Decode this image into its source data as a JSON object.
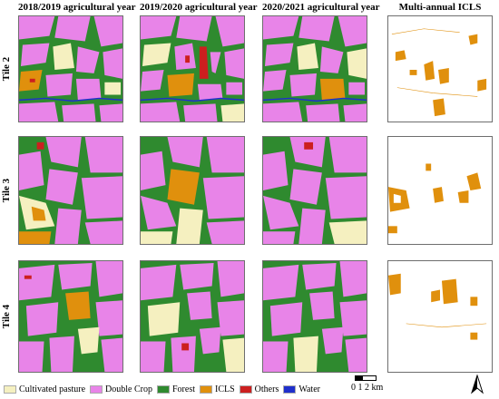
{
  "columns": [
    {
      "title": "2018/2019 agricultural year"
    },
    {
      "title": "2019/2020 agricultural year"
    },
    {
      "title": "2020/2021 agricultural year"
    },
    {
      "title": "Multi-annual ICLS"
    }
  ],
  "rows": [
    {
      "label": "Tile 2"
    },
    {
      "label": "Tile 3"
    },
    {
      "label": "Tile 4"
    }
  ],
  "legend": [
    {
      "label": "Cultivated pasture",
      "color": "#f5f0c0"
    },
    {
      "label": "Double Crop",
      "color": "#e884e8"
    },
    {
      "label": "Forest",
      "color": "#2f8a2f"
    },
    {
      "label": "ICLS",
      "color": "#e0900d"
    },
    {
      "label": "Others",
      "color": "#cc1f1f"
    },
    {
      "label": "Water",
      "color": "#1f2fcc"
    }
  ],
  "scale_bar": {
    "ticks": "0  1  2 km"
  },
  "north_arrow": {
    "icon": "north-arrow-icon"
  }
}
